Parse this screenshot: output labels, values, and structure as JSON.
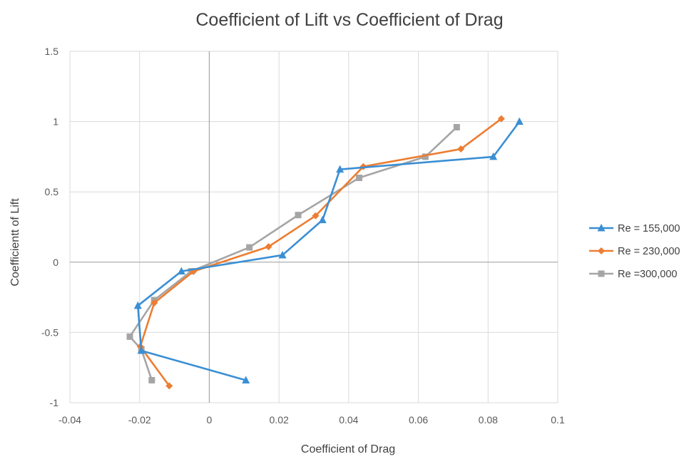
{
  "chart_data": {
    "type": "scatter",
    "title": "Coefficient of Lift vs Coefficient of Drag",
    "xlabel": "Coefficient of Drag",
    "ylabel": "Coefficientt of Lift",
    "xlim": [
      -0.04,
      0.1
    ],
    "ylim": [
      -1,
      1.5
    ],
    "x_ticks": [
      "-0.04",
      "-0.02",
      "0",
      "0.02",
      "0.04",
      "0.06",
      "0.08",
      "0.1"
    ],
    "y_ticks": [
      "1.5",
      "1",
      "0.5",
      "0",
      "-0.5",
      "-1"
    ],
    "grid": true,
    "legend_position": "right",
    "series": [
      {
        "name": "Re = 155,000",
        "color": "#3a8fd4",
        "marker": "triangle",
        "x": [
          0.0105,
          -0.0195,
          -0.0205,
          -0.008,
          0.021,
          0.0325,
          0.0375,
          0.0815,
          0.089
        ],
        "y": [
          -0.84,
          -0.63,
          -0.31,
          -0.065,
          0.05,
          0.3,
          0.66,
          0.75,
          1.0
        ]
      },
      {
        "name": "Re = 230,000",
        "color": "#ed7d31",
        "marker": "diamond",
        "x": [
          -0.0115,
          -0.0198,
          -0.0158,
          -0.0045,
          0.017,
          0.0305,
          0.0442,
          0.0722,
          0.0838
        ],
        "y": [
          -0.88,
          -0.6,
          -0.29,
          -0.065,
          0.11,
          0.33,
          0.68,
          0.805,
          1.02
        ]
      },
      {
        "name": "Re =300,000",
        "color": "#a5a5a5",
        "marker": "square",
        "x": [
          -0.0165,
          -0.0195,
          -0.0228,
          -0.0158,
          -0.0052,
          0.0115,
          0.0255,
          0.043,
          0.062,
          0.071
        ],
        "y": [
          -0.84,
          -0.62,
          -0.53,
          -0.27,
          -0.065,
          0.105,
          0.335,
          0.6,
          0.75,
          0.96
        ]
      }
    ]
  }
}
